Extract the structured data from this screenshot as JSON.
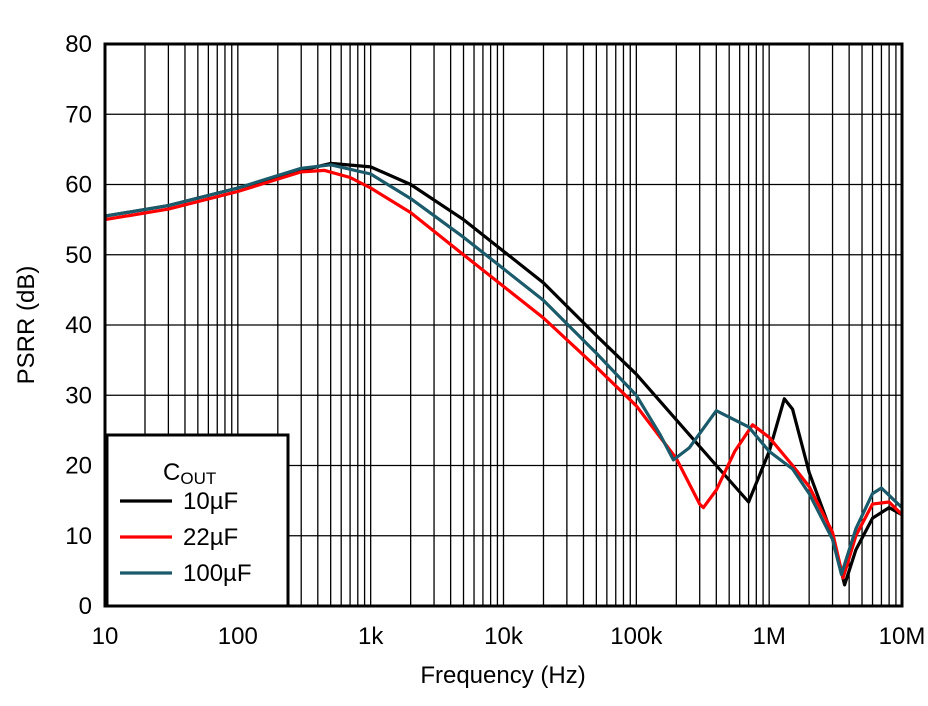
{
  "chart_data": {
    "type": "line",
    "title": "",
    "xlabel": "Frequency (Hz)",
    "ylabel": "PSRR (dB)",
    "xscale": "log",
    "xlim": [
      10,
      10000000
    ],
    "ylim": [
      0,
      80
    ],
    "grid": true,
    "legend_placement": "bottom-left",
    "legend_title": {
      "main": "C",
      "sub": "OUT"
    },
    "xticks": [
      {
        "v": 10,
        "label": "10"
      },
      {
        "v": 100,
        "label": "100"
      },
      {
        "v": 1000,
        "label": "1k"
      },
      {
        "v": 10000,
        "label": "10k"
      },
      {
        "v": 100000,
        "label": "100k"
      },
      {
        "v": 1000000,
        "label": "1M"
      },
      {
        "v": 10000000,
        "label": "10M"
      }
    ],
    "yticks": [
      0,
      10,
      20,
      30,
      40,
      50,
      60,
      70,
      80
    ],
    "series": [
      {
        "name": "10µF",
        "color": "#000000",
        "x": [
          10,
          30,
          100,
          300,
          500,
          1000,
          2000,
          5000,
          10000,
          20000,
          50000,
          100000,
          200000,
          400000,
          700000,
          1000000,
          1300000,
          1500000,
          2000000,
          3000000,
          3700000,
          4500000,
          6000000,
          8000000,
          10000000
        ],
        "y": [
          55.5,
          57,
          59.5,
          62,
          63,
          62.5,
          60,
          55,
          50.5,
          46,
          38.5,
          33,
          26.5,
          20,
          14.8,
          22,
          29.5,
          28,
          19,
          10,
          3,
          8,
          12.5,
          14,
          13
        ]
      },
      {
        "name": "22µF",
        "color": "#ff0000",
        "x": [
          10,
          30,
          100,
          300,
          450,
          700,
          1000,
          2000,
          5000,
          10000,
          20000,
          50000,
          100000,
          200000,
          300000,
          320000,
          400000,
          550000,
          750000,
          1000000,
          1500000,
          2000000,
          3000000,
          3600000,
          4500000,
          6000000,
          8000000,
          10000000
        ],
        "y": [
          55,
          56.5,
          59,
          61.8,
          62,
          61,
          59.5,
          56,
          50,
          45.5,
          41,
          34,
          28.5,
          21,
          14.5,
          14,
          16.5,
          22,
          25.8,
          24,
          20,
          17,
          10.5,
          4,
          10,
          14.5,
          14.8,
          13
        ]
      },
      {
        "name": "100µF",
        "color": "#1a5a6a",
        "x": [
          10,
          30,
          100,
          300,
          500,
          1000,
          2000,
          5000,
          10000,
          20000,
          50000,
          100000,
          150000,
          190000,
          250000,
          400000,
          700000,
          1000000,
          1500000,
          2000000,
          3000000,
          3500000,
          4500000,
          6000000,
          7000000,
          10000000
        ],
        "y": [
          55.5,
          57,
          59.5,
          62.3,
          62.8,
          61.5,
          58,
          52.5,
          48,
          43.5,
          36,
          30,
          24.5,
          20.8,
          22.5,
          27.8,
          25.5,
          22,
          19.5,
          16,
          9.5,
          4.5,
          11,
          16,
          16.8,
          14
        ]
      }
    ]
  }
}
